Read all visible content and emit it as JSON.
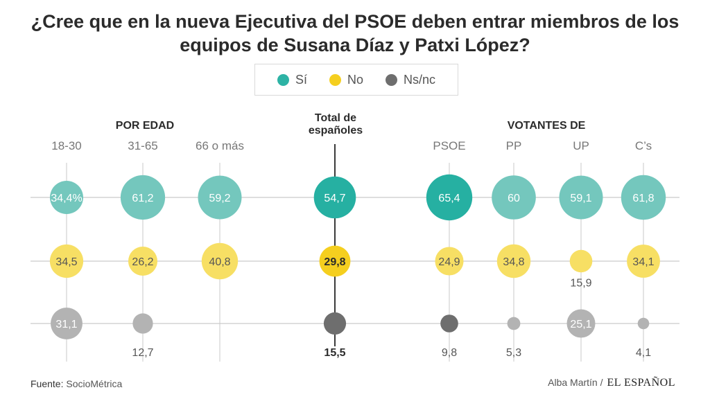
{
  "title": "¿Cree que en la nueva Ejecutiva del PSOE deben entrar miembros de los equipos de Susana Díaz y Patxi López?",
  "legend": [
    {
      "label": "Sí",
      "color": "#6cc3b8"
    },
    {
      "label": "No",
      "color": "#f5d847"
    },
    {
      "label": "Ns/nc",
      "color": "#777777"
    }
  ],
  "chart_data": {
    "type": "scatter",
    "title": "¿Cree que en la nueva Ejecutiva del PSOE deben entrar miembros de los equipos de Susana Díaz y Patxi López?",
    "groups": [
      "POR EDAD",
      "Total de españoles",
      "VOTANTES DE"
    ],
    "categories": [
      "18-30",
      "31-65",
      "66 o más",
      "Total de españoles",
      "PSOE",
      "PP",
      "UP",
      "C’s"
    ],
    "series": [
      {
        "name": "Sí",
        "values": [
          34.4,
          61.2,
          59.2,
          54.7,
          65.4,
          60,
          59.1,
          61.8
        ],
        "labels": [
          "34,4%",
          "61,2",
          "59,2",
          "54,7",
          "65,4",
          "60",
          "59,1",
          "61,8"
        ]
      },
      {
        "name": "No",
        "values": [
          34.5,
          26.2,
          40.8,
          29.8,
          24.9,
          34.8,
          15.9,
          34.1
        ],
        "labels": [
          "34,5",
          "26,2",
          "40,8",
          "29,8",
          "24,9",
          "34,8",
          "15,9",
          "34,1"
        ]
      },
      {
        "name": "Ns/nc",
        "values": [
          31.1,
          12.7,
          0,
          15.5,
          9.8,
          5.3,
          25.1,
          4.1
        ],
        "labels": [
          "31,1",
          "12,7",
          "",
          "15,5",
          "9,8",
          "5,3",
          "25,1",
          "4,1"
        ]
      }
    ]
  },
  "footer": {
    "source_label": "Fuente:",
    "source": "SocioMétrica",
    "author": "Alba Martín /",
    "brand": "EL ESPAÑOL"
  }
}
